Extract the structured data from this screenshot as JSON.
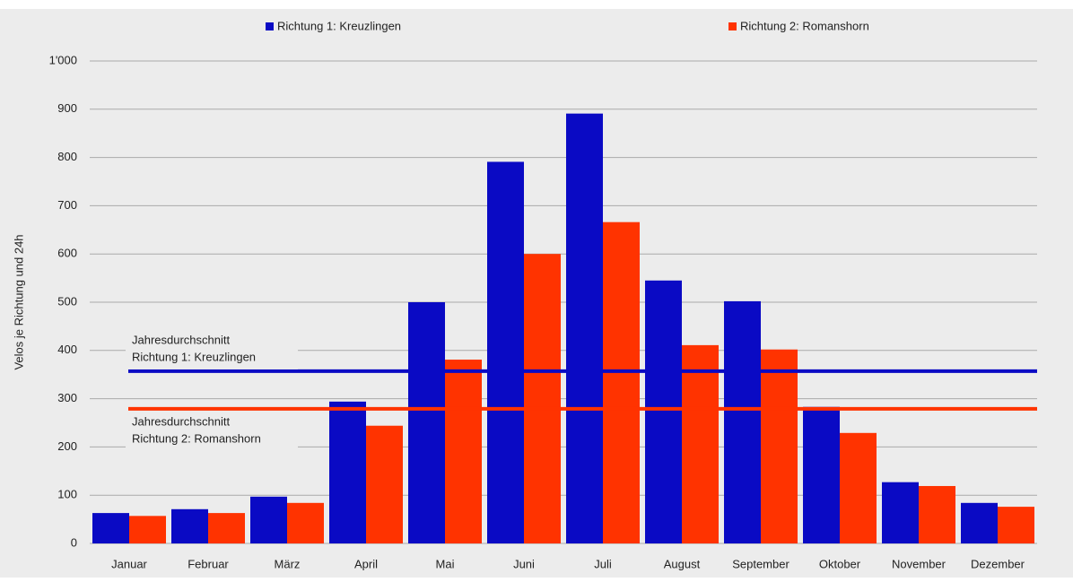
{
  "chart_data": {
    "type": "bar",
    "y_label": "Velos je Richtung und 24h",
    "categories": [
      "Januar",
      "Februar",
      "März",
      "April",
      "Mai",
      "Juni",
      "Juli",
      "August",
      "September",
      "Oktober",
      "November",
      "Dezember"
    ],
    "series": [
      {
        "name": "Richtung 1: Kreuzlingen",
        "color": "#0a0ac4",
        "values": [
          63,
          71,
          97,
          294,
          500,
          791,
          891,
          545,
          502,
          283,
          127,
          84
        ]
      },
      {
        "name": "Richtung 2: Romanshorn",
        "color": "#ff3300",
        "values": [
          57,
          63,
          84,
          244,
          381,
          600,
          666,
          411,
          402,
          229,
          119,
          76
        ]
      }
    ],
    "reference_lines": [
      {
        "label": [
          "Jahresdurchschnitt",
          "Richtung 1: Kreuzlingen"
        ],
        "value": 357,
        "color": "#0a0ac4"
      },
      {
        "label": [
          "Jahresdurchschnitt",
          "Richtung 2: Romanshorn"
        ],
        "value": 279,
        "color": "#ff3300"
      }
    ],
    "ylim": [
      0,
      1000
    ],
    "yticks": [
      0,
      100,
      200,
      300,
      400,
      500,
      600,
      700,
      800,
      900,
      {
        "value": 1000,
        "label": "1'000"
      }
    ],
    "grid": true,
    "legend": "top"
  }
}
